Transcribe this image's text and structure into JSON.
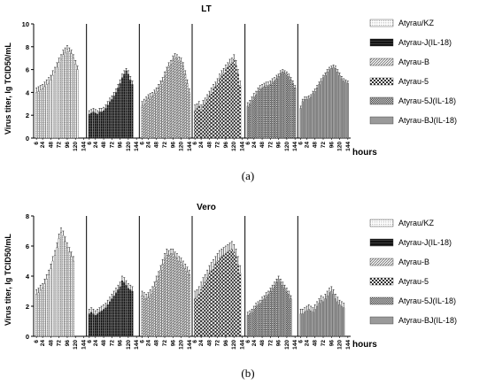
{
  "chart_data": [
    {
      "type": "bar",
      "title": "LT",
      "ylabel": "Virus titer, lg TCID50/mL",
      "xlabel": "hours",
      "caption": "(a)",
      "ylim": [
        0,
        10
      ],
      "yticks": [
        0,
        2,
        4,
        6,
        8,
        10
      ],
      "ticklabels": [
        "6",
        "24",
        "48",
        "72",
        "96",
        "120",
        "144"
      ],
      "series": [
        {
          "name": "Atyrau/KZ",
          "hours": [
            6,
            12,
            18,
            24,
            30,
            36,
            42,
            48,
            54,
            60,
            66,
            72,
            78,
            84,
            90,
            96,
            102,
            108,
            114,
            120,
            126,
            132,
            138,
            144
          ],
          "values": [
            4.0,
            4.1,
            4.2,
            4.3,
            4.5,
            4.7,
            4.8,
            5.1,
            5.5,
            5.8,
            6.2,
            6.6,
            6.9,
            7.3,
            7.5,
            7.8,
            7.6,
            7.4,
            7.0,
            6.5,
            6.0,
            0,
            0,
            0
          ],
          "errors": [
            0.4,
            0.4,
            0.4,
            0.4,
            0.4,
            0.4,
            0.5,
            0.4,
            0.4,
            0.4,
            0.4,
            0.4,
            0.4,
            0.4,
            0.4,
            0.3,
            0.3,
            0.3,
            0.3,
            0.3,
            0.3,
            0,
            0,
            0
          ]
        },
        {
          "name": "Atyrau-J(IL-18)",
          "hours": [
            6,
            12,
            18,
            24,
            30,
            36,
            42,
            48,
            54,
            60,
            66,
            72,
            78,
            84,
            90,
            96,
            102,
            108,
            114,
            120,
            126,
            132,
            138,
            144
          ],
          "values": [
            2.1,
            2.2,
            2.3,
            2.2,
            2.1,
            2.3,
            2.3,
            2.4,
            2.6,
            2.9,
            3.2,
            3.4,
            3.7,
            4.0,
            4.4,
            4.8,
            5.3,
            5.6,
            5.9,
            5.6,
            5.1,
            4.7,
            0,
            0
          ],
          "errors": [
            0.3,
            0.3,
            0.3,
            0.3,
            0.3,
            0.3,
            0.3,
            0.3,
            0.3,
            0.3,
            0.3,
            0.3,
            0.3,
            0.3,
            0.3,
            0.3,
            0.3,
            0.3,
            0.2,
            0.3,
            0.3,
            0.3,
            0,
            0
          ]
        },
        {
          "name": "Atyrau-B",
          "hours": [
            6,
            12,
            18,
            24,
            30,
            36,
            42,
            48,
            54,
            60,
            66,
            72,
            78,
            84,
            90,
            96,
            102,
            108,
            114,
            120,
            126,
            132,
            138,
            144
          ],
          "values": [
            2.8,
            3.0,
            3.3,
            3.5,
            3.6,
            3.7,
            3.9,
            4.1,
            4.4,
            4.7,
            5.0,
            5.5,
            5.9,
            6.3,
            6.5,
            6.9,
            7.1,
            7.0,
            6.8,
            6.7,
            6.3,
            5.6,
            4.8,
            4.0
          ],
          "errors": [
            0.4,
            0.4,
            0.3,
            0.3,
            0.3,
            0.3,
            0.3,
            0.3,
            0.3,
            0.3,
            0.3,
            0.3,
            0.3,
            0.3,
            0.3,
            0.3,
            0.3,
            0.3,
            0.3,
            0.3,
            0.3,
            0.3,
            0.3,
            0.3
          ]
        },
        {
          "name": "Atyrau-5",
          "hours": [
            6,
            12,
            18,
            24,
            30,
            36,
            42,
            48,
            54,
            60,
            66,
            72,
            78,
            84,
            90,
            96,
            102,
            108,
            114,
            120,
            126,
            132,
            138,
            144
          ],
          "values": [
            2.4,
            2.6,
            2.8,
            2.5,
            2.9,
            3.1,
            3.4,
            3.7,
            4.0,
            4.3,
            4.5,
            4.8,
            5.2,
            5.5,
            5.7,
            6.0,
            6.2,
            6.5,
            6.6,
            6.9,
            6.4,
            5.6,
            4.6,
            0
          ],
          "errors": [
            0.5,
            0.4,
            0.4,
            0.4,
            0.4,
            0.4,
            0.4,
            0.4,
            0.4,
            0.4,
            0.4,
            0.4,
            0.4,
            0.4,
            0.4,
            0.4,
            0.4,
            0.4,
            0.4,
            0.4,
            0.4,
            0.4,
            0.4,
            0
          ]
        },
        {
          "name": "Atyrau-5J(IL-18)",
          "hours": [
            6,
            12,
            18,
            24,
            30,
            36,
            42,
            48,
            54,
            60,
            66,
            72,
            78,
            84,
            90,
            96,
            102,
            108,
            114,
            120,
            126,
            132,
            138,
            144
          ],
          "values": [
            2.8,
            3.0,
            3.3,
            3.6,
            3.8,
            4.1,
            4.3,
            4.4,
            4.5,
            4.6,
            4.6,
            4.7,
            4.9,
            5.0,
            5.2,
            5.4,
            5.7,
            5.8,
            5.7,
            5.6,
            5.4,
            5.1,
            4.8,
            4.4
          ],
          "errors": [
            0.3,
            0.3,
            0.3,
            0.3,
            0.3,
            0.3,
            0.3,
            0.3,
            0.3,
            0.3,
            0.3,
            0.3,
            0.3,
            0.3,
            0.3,
            0.2,
            0.2,
            0.2,
            0.2,
            0.2,
            0.2,
            0.2,
            0.2,
            0.2
          ]
        },
        {
          "name": "Atyrau-BJ(IL-18)",
          "hours": [
            6,
            12,
            18,
            24,
            30,
            36,
            42,
            48,
            54,
            60,
            66,
            72,
            78,
            84,
            90,
            96,
            102,
            108,
            114,
            120,
            126,
            132,
            138,
            144
          ],
          "values": [
            2.6,
            3.2,
            3.4,
            3.4,
            3.5,
            3.6,
            3.9,
            4.1,
            4.4,
            4.7,
            5.0,
            5.3,
            5.5,
            5.8,
            6.0,
            6.1,
            6.2,
            6.1,
            5.8,
            5.5,
            5.2,
            5.0,
            4.9,
            4.8
          ],
          "errors": [
            0.2,
            0.2,
            0.2,
            0.2,
            0.2,
            0.2,
            0.2,
            0.2,
            0.2,
            0.2,
            0.2,
            0.2,
            0.2,
            0.2,
            0.2,
            0.2,
            0.2,
            0.2,
            0.2,
            0.2,
            0.2,
            0.2,
            0.2,
            0.2
          ]
        }
      ]
    },
    {
      "type": "bar",
      "title": "Vero",
      "ylabel": "Virus titer, lg TCID50/mL",
      "xlabel": "hours",
      "caption": "(b)",
      "ylim": [
        0,
        8
      ],
      "yticks": [
        0,
        2,
        4,
        6,
        8
      ],
      "ticklabels": [
        "6",
        "24",
        "48",
        "72",
        "96",
        "120",
        "144"
      ],
      "series": [
        {
          "name": "Atyrau/KZ",
          "hours": [
            6,
            12,
            18,
            24,
            30,
            36,
            42,
            48,
            54,
            60,
            66,
            72,
            78,
            84,
            90,
            96,
            102,
            108,
            114,
            120,
            126,
            132,
            138,
            144
          ],
          "values": [
            2.8,
            2.9,
            3.1,
            3.2,
            3.5,
            3.8,
            4.1,
            4.5,
            5.0,
            5.4,
            5.9,
            6.5,
            6.9,
            6.7,
            6.3,
            5.9,
            5.6,
            5.3,
            5.0,
            0,
            0,
            0,
            0,
            0
          ],
          "errors": [
            0.3,
            0.3,
            0.3,
            0.3,
            0.3,
            0.3,
            0.3,
            0.3,
            0.3,
            0.3,
            0.3,
            0.3,
            0.3,
            0.3,
            0.3,
            0.3,
            0.3,
            0.3,
            0.3,
            0,
            0,
            0,
            0,
            0
          ]
        },
        {
          "name": "Atyrau-J(IL-18)",
          "hours": [
            6,
            12,
            18,
            24,
            30,
            36,
            42,
            48,
            54,
            60,
            66,
            72,
            78,
            84,
            90,
            96,
            102,
            108,
            114,
            120,
            126,
            132,
            138,
            144
          ],
          "values": [
            1.5,
            1.6,
            1.5,
            1.4,
            1.5,
            1.6,
            1.7,
            1.8,
            1.9,
            2.1,
            2.3,
            2.5,
            2.7,
            2.9,
            3.1,
            3.3,
            3.7,
            3.6,
            3.4,
            3.2,
            3.1,
            3.0,
            0,
            0
          ],
          "errors": [
            0.3,
            0.3,
            0.3,
            0.3,
            0.3,
            0.3,
            0.3,
            0.3,
            0.3,
            0.3,
            0.3,
            0.3,
            0.3,
            0.3,
            0.3,
            0.3,
            0.3,
            0.3,
            0.3,
            0.3,
            0.3,
            0.3,
            0,
            0
          ]
        },
        {
          "name": "Atyrau-B",
          "hours": [
            6,
            12,
            18,
            24,
            30,
            36,
            42,
            48,
            54,
            60,
            66,
            72,
            78,
            84,
            90,
            96,
            102,
            108,
            114,
            120,
            126,
            132,
            138,
            144
          ],
          "values": [
            2.7,
            2.6,
            2.5,
            2.6,
            2.8,
            3.0,
            3.3,
            3.7,
            4.0,
            4.4,
            4.8,
            5.2,
            5.5,
            5.4,
            5.5,
            5.5,
            5.3,
            5.2,
            5.0,
            4.9,
            4.7,
            4.5,
            4.3,
            4.1
          ],
          "errors": [
            0.3,
            0.3,
            0.3,
            0.3,
            0.3,
            0.3,
            0.3,
            0.3,
            0.3,
            0.3,
            0.3,
            0.3,
            0.3,
            0.3,
            0.3,
            0.3,
            0.3,
            0.3,
            0.3,
            0.3,
            0.3,
            0.3,
            0.3,
            0.3
          ]
        },
        {
          "name": "Atyrau-5",
          "hours": [
            6,
            12,
            18,
            24,
            30,
            36,
            42,
            48,
            54,
            60,
            66,
            72,
            78,
            84,
            90,
            96,
            102,
            108,
            114,
            120,
            126,
            132,
            138,
            144
          ],
          "values": [
            2.5,
            2.6,
            2.8,
            3.1,
            3.4,
            3.6,
            3.9,
            4.2,
            4.4,
            4.6,
            4.8,
            5.0,
            5.2,
            5.3,
            5.4,
            5.5,
            5.6,
            5.7,
            5.8,
            5.6,
            5.3,
            4.8,
            4.2,
            0
          ],
          "errors": [
            0.5,
            0.5,
            0.5,
            0.5,
            0.5,
            0.5,
            0.5,
            0.5,
            0.5,
            0.5,
            0.5,
            0.5,
            0.5,
            0.5,
            0.5,
            0.5,
            0.5,
            0.5,
            0.5,
            0.5,
            0.5,
            0.5,
            0.5,
            0
          ]
        },
        {
          "name": "Atyrau-5J(IL-18)",
          "hours": [
            6,
            12,
            18,
            24,
            30,
            36,
            42,
            48,
            54,
            60,
            66,
            72,
            78,
            84,
            90,
            96,
            102,
            108,
            114,
            120,
            126,
            132,
            138,
            144
          ],
          "values": [
            1.4,
            1.5,
            1.6,
            1.8,
            2.0,
            2.1,
            2.2,
            2.4,
            2.5,
            2.7,
            2.8,
            3.0,
            3.2,
            3.4,
            3.6,
            3.8,
            3.6,
            3.4,
            3.2,
            3.0,
            2.8,
            2.5,
            0,
            0
          ],
          "errors": [
            0.2,
            0.2,
            0.2,
            0.2,
            0.2,
            0.2,
            0.2,
            0.2,
            0.2,
            0.2,
            0.2,
            0.2,
            0.2,
            0.2,
            0.2,
            0.2,
            0.2,
            0.2,
            0.2,
            0.2,
            0.2,
            0.2,
            0,
            0
          ]
        },
        {
          "name": "Atyrau-BJ(IL-18)",
          "hours": [
            6,
            12,
            18,
            24,
            30,
            36,
            42,
            48,
            54,
            60,
            66,
            72,
            78,
            84,
            90,
            96,
            102,
            108,
            114,
            120,
            126,
            132,
            138,
            144
          ],
          "values": [
            1.5,
            1.5,
            1.6,
            1.7,
            1.8,
            1.7,
            1.6,
            1.8,
            2.0,
            2.2,
            2.4,
            2.3,
            2.5,
            2.7,
            2.9,
            3.0,
            2.8,
            2.5,
            2.3,
            2.1,
            2.0,
            1.9,
            0,
            0
          ],
          "errors": [
            0.3,
            0.3,
            0.3,
            0.3,
            0.3,
            0.3,
            0.3,
            0.3,
            0.3,
            0.3,
            0.3,
            0.3,
            0.3,
            0.3,
            0.3,
            0.3,
            0.3,
            0.3,
            0.3,
            0.3,
            0.3,
            0.3,
            0,
            0
          ]
        }
      ]
    }
  ],
  "legend_patterns": [
    "dots",
    "solid-black",
    "diagonal",
    "checker",
    "dense-checker",
    "solid-gray"
  ]
}
